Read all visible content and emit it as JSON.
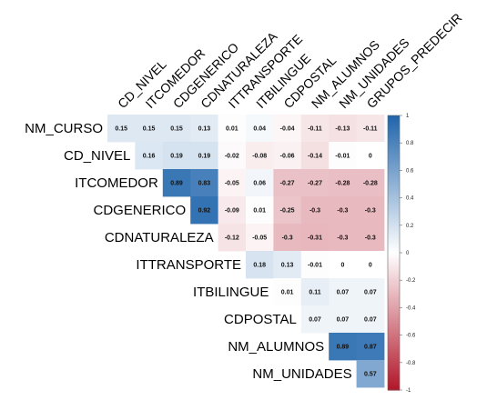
{
  "chart_data": {
    "type": "heatmap",
    "title": "",
    "variables": [
      "NM_CURSO",
      "CD_NIVEL",
      "ITCOMEDOR",
      "CDGENERICO",
      "CDNATURALEZA",
      "ITTRANSPORTE",
      "ITBILINGUE",
      "CDPOSTAL",
      "NM_ALUMNOS",
      "NM_UNIDADES",
      "GRUPOS_PREDECIR"
    ],
    "row_labels": [
      "NM_CURSO",
      "CD_NIVEL",
      "ITCOMEDOR",
      "CDGENERICO",
      "CDNATURALEZA",
      "ITTRANSPORTE",
      "ITBILINGUE",
      "CDPOSTAL",
      "NM_ALUMNOS",
      "NM_UNIDADES"
    ],
    "column_labels": [
      "CD_NIVEL",
      "ITCOMEDOR",
      "CDGENERICO",
      "CDNATURALEZA",
      "ITTRANSPORTE",
      "ITBILINGUE",
      "CDPOSTAL",
      "NM_ALUMNOS",
      "NM_UNIDADES",
      "GRUPOS_PREDECIR"
    ],
    "correlations": [
      [
        0.15,
        0.15,
        0.15,
        0.13,
        0.01,
        0.04,
        -0.04,
        -0.11,
        -0.13,
        -0.11
      ],
      [
        null,
        0.16,
        0.19,
        0.19,
        -0.02,
        -0.08,
        -0.06,
        -0.14,
        -0.01,
        0
      ],
      [
        null,
        null,
        0.89,
        0.83,
        -0.05,
        0.06,
        -0.27,
        -0.27,
        -0.28,
        -0.28
      ],
      [
        null,
        null,
        null,
        0.92,
        -0.09,
        0.01,
        -0.25,
        -0.3,
        -0.3,
        -0.3
      ],
      [
        null,
        null,
        null,
        null,
        -0.12,
        -0.05,
        -0.3,
        -0.31,
        -0.3,
        -0.3
      ],
      [
        null,
        null,
        null,
        null,
        null,
        0.18,
        0.13,
        -0.01,
        0,
        0
      ],
      [
        null,
        null,
        null,
        null,
        null,
        null,
        0.01,
        0.11,
        0.07,
        0.07
      ],
      [
        null,
        null,
        null,
        null,
        null,
        null,
        null,
        0.07,
        0.07,
        0.07
      ],
      [
        null,
        null,
        null,
        null,
        null,
        null,
        null,
        null,
        0.89,
        0.87
      ],
      [
        null,
        null,
        null,
        null,
        null,
        null,
        null,
        null,
        null,
        0.57
      ]
    ],
    "value_range": [
      -1,
      1
    ],
    "legend": {
      "placement": "right",
      "ticks": [
        1,
        0.8,
        0.6,
        0.4,
        0.2,
        0,
        -0.2,
        -0.4,
        -0.6,
        -0.8,
        -1
      ],
      "tick_labels": [
        "1",
        "0.8",
        "0.6",
        "0.4",
        "0.2",
        "0",
        "-0.2",
        "-0.4",
        "-0.6",
        "-0.8",
        "-1"
      ]
    },
    "colors": {
      "positive": "#2166ac",
      "zero": "#ffffff",
      "negative": "#b2182b"
    },
    "grid": false
  }
}
